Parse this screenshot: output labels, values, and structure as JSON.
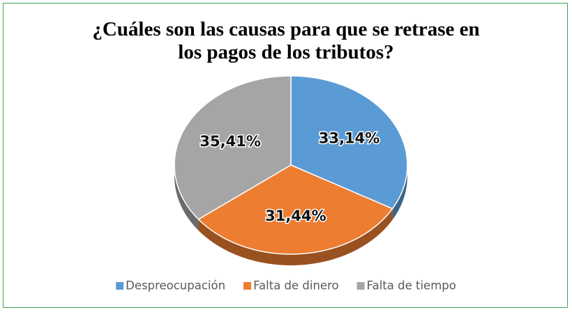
{
  "chart_data": {
    "type": "pie",
    "title": "¿Cuáles son las causas para que se retrase en los pagos de los tributos?",
    "categories": [
      "Despreocupación",
      "Falta de dinero",
      "Falta de tiempo"
    ],
    "values": [
      33.14,
      31.44,
      35.41
    ],
    "value_labels": [
      "33,14%",
      "31,44%",
      "35,41%"
    ],
    "colors": [
      "#5b9bd5",
      "#ed7d31",
      "#a5a5a5"
    ],
    "legend": "bottom"
  }
}
